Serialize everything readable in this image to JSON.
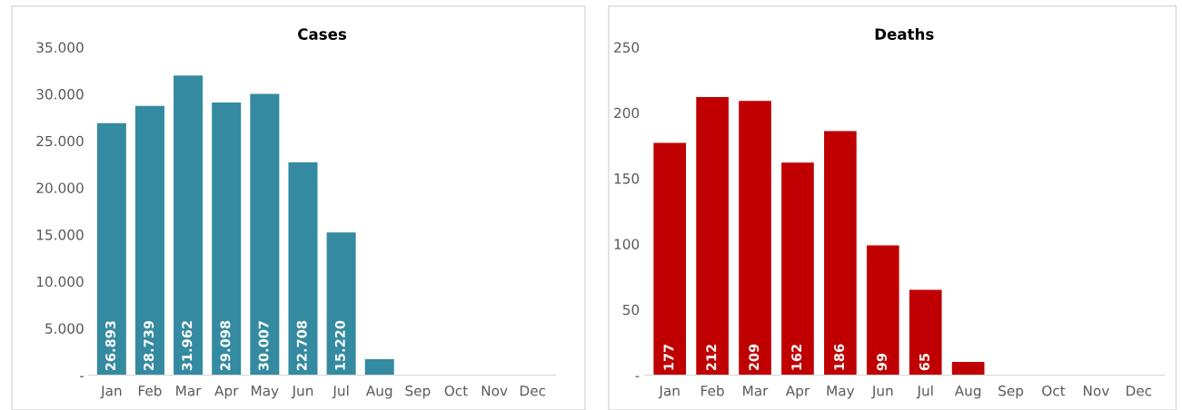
{
  "chart_data": [
    {
      "type": "bar",
      "title": "Cases",
      "categories": [
        "Jan",
        "Feb",
        "Mar",
        "Apr",
        "May",
        "Jun",
        "Jul",
        "Aug",
        "Sep",
        "Oct",
        "Nov",
        "Dec"
      ],
      "values": [
        26893,
        28739,
        31962,
        29098,
        30007,
        22708,
        15220,
        1700,
        null,
        null,
        null,
        null
      ],
      "value_labels": [
        "26.893",
        "28.739",
        "31.962",
        "29.098",
        "30.007",
        "22.708",
        "15.220",
        null,
        null,
        null,
        null,
        null
      ],
      "color": "#348aa0",
      "ylim": [
        0,
        35000
      ],
      "yticks": [
        {
          "value": 0,
          "label": "-"
        },
        {
          "value": 5000,
          "label": "5.000"
        },
        {
          "value": 10000,
          "label": "10.000"
        },
        {
          "value": 15000,
          "label": "15.000"
        },
        {
          "value": 20000,
          "label": "20.000"
        },
        {
          "value": 25000,
          "label": "25.000"
        },
        {
          "value": 30000,
          "label": "30.000"
        },
        {
          "value": 35000,
          "label": "35.000"
        }
      ],
      "grid": false,
      "legend": false
    },
    {
      "type": "bar",
      "title": "Deaths",
      "categories": [
        "Jan",
        "Feb",
        "Mar",
        "Apr",
        "May",
        "Jun",
        "Jul",
        "Aug",
        "Sep",
        "Oct",
        "Nov",
        "Dec"
      ],
      "values": [
        177,
        212,
        209,
        162,
        186,
        99,
        65,
        10,
        null,
        null,
        null,
        null
      ],
      "value_labels": [
        "177",
        "212",
        "209",
        "162",
        "186",
        "99",
        "65",
        null,
        null,
        null,
        null,
        null
      ],
      "color": "#c00000",
      "ylim": [
        0,
        250
      ],
      "yticks": [
        {
          "value": 0,
          "label": "-"
        },
        50,
        100,
        150,
        200,
        250
      ],
      "grid": false,
      "legend": false
    }
  ]
}
